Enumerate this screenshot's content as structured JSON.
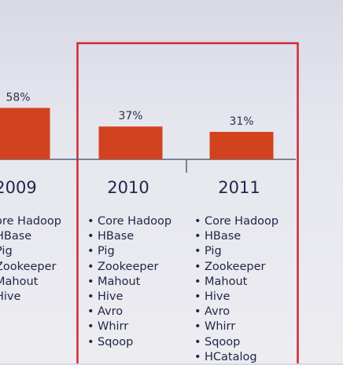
{
  "chart_data": {
    "type": "bar",
    "categories": [
      "2009",
      "2010",
      "2011"
    ],
    "values": [
      58,
      37,
      31
    ],
    "value_labels": [
      "58%",
      "37%",
      "31%"
    ],
    "title": "",
    "xlabel": "",
    "ylabel": "",
    "ylim": [
      0,
      100
    ],
    "bar_color": "#d2421f",
    "highlight_color": "#cc2a36",
    "highlight_categories": [
      "2010",
      "2011"
    ],
    "grid": false
  },
  "components": [
    [
      "ore Hadoop",
      "HBase",
      "Pig",
      "Zookeeper",
      "Mahout",
      "Hive"
    ],
    [
      "Core Hadoop",
      "HBase",
      "Pig",
      "Zookeeper",
      "Mahout",
      "Hive",
      "Avro",
      "Whirr",
      "Sqoop"
    ],
    [
      "Core Hadoop",
      "HBase",
      "Pig",
      "Zookeeper",
      "Mahout",
      "Hive",
      "Avro",
      "Whirr",
      "Sqoop",
      "HCatalog"
    ]
  ],
  "bullet": "•"
}
